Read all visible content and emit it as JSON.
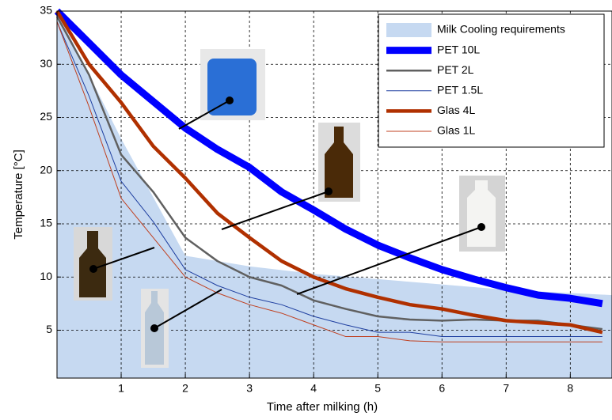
{
  "chart_data": {
    "type": "line",
    "xlabel": "Time after milking (h)",
    "ylabel": "Temperature [°C]",
    "xlim": [
      0,
      8.65
    ],
    "ylim": [
      0.5,
      35
    ],
    "xticks": [
      1,
      2,
      3,
      4,
      5,
      6,
      7,
      8
    ],
    "yticks": [
      5,
      10,
      15,
      20,
      25,
      30,
      35
    ],
    "grid": true,
    "legend": "upper right",
    "x": [
      0,
      0.5,
      1,
      1.5,
      2,
      2.5,
      3,
      3.5,
      4,
      4.5,
      5,
      5.5,
      6,
      6.5,
      7,
      7.5,
      8,
      8.5
    ],
    "series": [
      {
        "name": "Milk Cooling requirements",
        "type": "area",
        "color": "#c6d9f1",
        "x": [
          0,
          1,
          2,
          3,
          4,
          5,
          6,
          7,
          8.65
        ],
        "values": [
          35,
          23,
          12,
          11,
          10.3,
          9.8,
          9.3,
          8.8,
          8.3
        ]
      },
      {
        "name": "PET 10L",
        "color": "#0000ff",
        "width": 9,
        "values": [
          35,
          32,
          29,
          26.5,
          24,
          22,
          20.3,
          18,
          16.3,
          14.5,
          13,
          11.8,
          10.7,
          9.8,
          9,
          8.3,
          8,
          7.5
        ]
      },
      {
        "name": "PET 2L",
        "color": "#606060",
        "width": 2.5,
        "values": [
          34.5,
          29,
          21.5,
          18,
          13.7,
          11.5,
          10,
          9.2,
          7.8,
          7,
          6.3,
          6,
          5.9,
          6,
          5.9,
          5.9,
          5.5,
          5.1
        ]
      },
      {
        "name": "PET 1.5L",
        "color": "#1f3fa0",
        "width": 1,
        "values": [
          34,
          27,
          19,
          15.2,
          10.7,
          9.2,
          8.1,
          7.4,
          6.3,
          5.5,
          4.8,
          4.8,
          4.4,
          4.4,
          4.4,
          4.4,
          4.4,
          4.4
        ]
      },
      {
        "name": "Glas 4L",
        "color": "#b03000",
        "width": 4.5,
        "values": [
          35,
          30,
          26.4,
          22.3,
          19.3,
          16,
          13.7,
          11.5,
          10,
          8.9,
          8.1,
          7.4,
          7,
          6.4,
          5.9,
          5.7,
          5.5,
          4.8
        ]
      },
      {
        "name": "Glas 1L",
        "color": "#c04020",
        "width": 1,
        "values": [
          34,
          26,
          17.4,
          13.7,
          10,
          8.5,
          7.4,
          6.6,
          5.5,
          4.4,
          4.4,
          4,
          3.9,
          3.9,
          3.9,
          3.9,
          3.9,
          3.9
        ]
      }
    ]
  }
}
